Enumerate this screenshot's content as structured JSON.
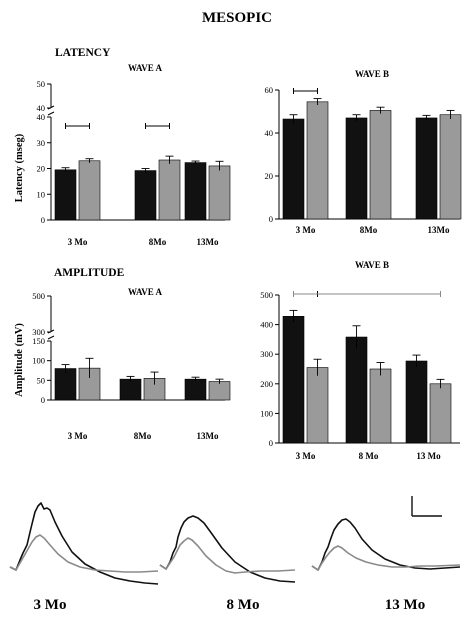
{
  "figure": {
    "title": "MESOPIC",
    "latency_section": "LATENCY",
    "amplitude_section": "AMPLITUDE",
    "trace_labels": [
      "3 Mo",
      "8 Mo",
      "13 Mo"
    ]
  },
  "colors": {
    "dark": "#111111",
    "light": "#9a9a9a",
    "trace_light": "#8a8a8a"
  },
  "chart_data": [
    {
      "id": "latency_a",
      "type": "bar",
      "title": "WAVE A",
      "ylabel": "Latency (mseg)",
      "categories": [
        "3 Mo",
        "8Mo",
        "13Mo"
      ],
      "axis_break": true,
      "ylim": [
        0,
        40
      ],
      "break_ylim": [
        40,
        50
      ],
      "ticks_lower": [
        "0",
        "10",
        "20",
        "30",
        "40"
      ],
      "ticks_upper": [
        "40",
        "50"
      ],
      "series": [
        {
          "values": [
            19.5,
            19.2,
            22.3
          ],
          "errors": [
            0.8,
            0.8,
            0.6
          ]
        },
        {
          "values": [
            23.0,
            23.3,
            21.0
          ],
          "errors": [
            0.8,
            1.5,
            1.8
          ]
        }
      ],
      "significance": [
        [
          0,
          0
        ],
        [
          1,
          1
        ]
      ]
    },
    {
      "id": "latency_b",
      "type": "bar",
      "title": "WAVE B",
      "ylabel": "",
      "categories": [
        "3  Mo",
        "8Mo",
        "13Mo"
      ],
      "axis_break": false,
      "ylim": [
        0,
        60
      ],
      "ticks": [
        "0",
        "20",
        "40",
        "60"
      ],
      "series": [
        {
          "values": [
            46.5,
            47.0,
            47.0
          ],
          "errors": [
            2.0,
            1.5,
            1.2
          ]
        },
        {
          "values": [
            54.5,
            50.5,
            48.5
          ],
          "errors": [
            1.5,
            1.5,
            2.0
          ]
        }
      ],
      "significance": [
        [
          0,
          0
        ]
      ]
    },
    {
      "id": "amplitude_a",
      "type": "bar",
      "title": "WAVE A",
      "ylabel": "Amplitude (mV)",
      "categories": [
        "3  Mo",
        "8Mo",
        "13Mo"
      ],
      "axis_break": true,
      "ylim": [
        0,
        150
      ],
      "break_ylim": [
        150,
        500
      ],
      "ticks_lower": [
        "0",
        "50",
        "100",
        "150"
      ],
      "ticks_upper": [
        "300",
        "500"
      ],
      "series": [
        {
          "values": [
            80,
            53,
            53
          ],
          "errors": [
            10,
            7,
            5
          ]
        },
        {
          "values": [
            81,
            55,
            47
          ],
          "errors": [
            25,
            16,
            6
          ]
        }
      ],
      "significance": []
    },
    {
      "id": "amplitude_b",
      "type": "bar",
      "title": "WAVE B",
      "ylabel": "",
      "categories": [
        "3 Mo",
        "8 Mo",
        "13 Mo"
      ],
      "axis_break": false,
      "ylim": [
        0,
        500
      ],
      "ticks": [
        "0",
        "100",
        "200",
        "300",
        "400",
        "500"
      ],
      "series": [
        {
          "values": [
            428,
            358,
            277
          ],
          "errors": [
            20,
            38,
            20
          ]
        },
        {
          "values": [
            255,
            250,
            200
          ],
          "errors": [
            28,
            22,
            15
          ]
        }
      ],
      "significance": [
        [
          0,
          0
        ],
        [
          0,
          2
        ]
      ]
    }
  ]
}
